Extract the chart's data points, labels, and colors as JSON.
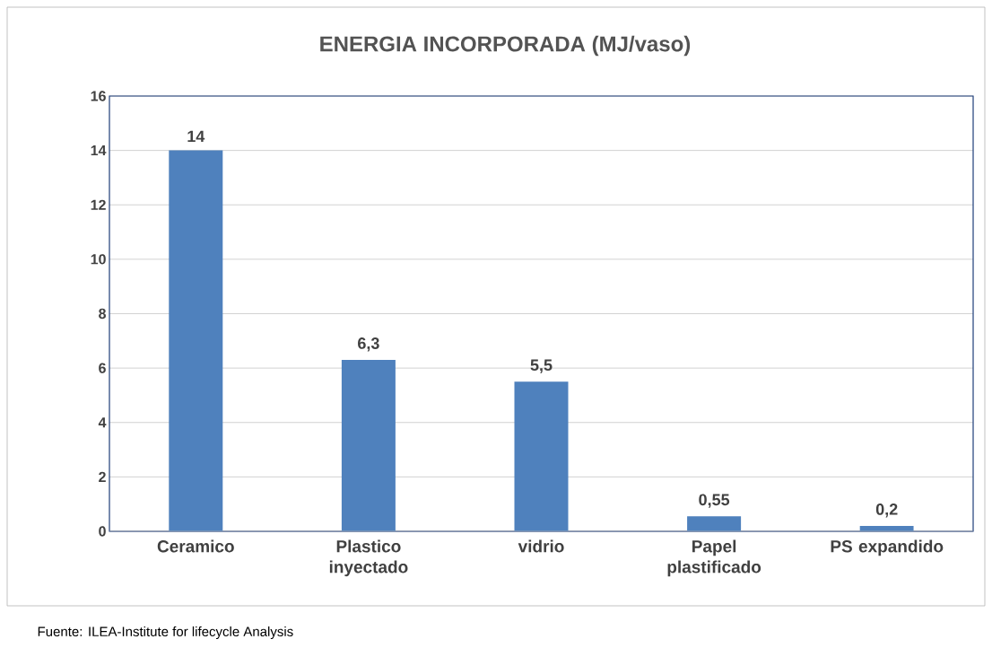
{
  "chart_data": {
    "type": "bar",
    "title": "ENERGIA INCORPORADA (MJ/vaso)",
    "categories": [
      "Ceramico",
      "Plastico inyectado",
      "vidrio",
      "Papel plastificado",
      "PS expandido"
    ],
    "values": [
      14,
      6.3,
      5.5,
      0.55,
      0.2
    ],
    "value_labels": [
      "14",
      "6,3",
      "5,5",
      "0,55",
      "0,2"
    ],
    "color": "#4f81bd",
    "ylim": [
      0,
      16
    ],
    "yticks": [
      0,
      2,
      4,
      6,
      8,
      10,
      12,
      14,
      16
    ],
    "grid": "y",
    "annotations": [
      "Fuente: ILEA-Institute for lifecycle Analysis"
    ]
  }
}
